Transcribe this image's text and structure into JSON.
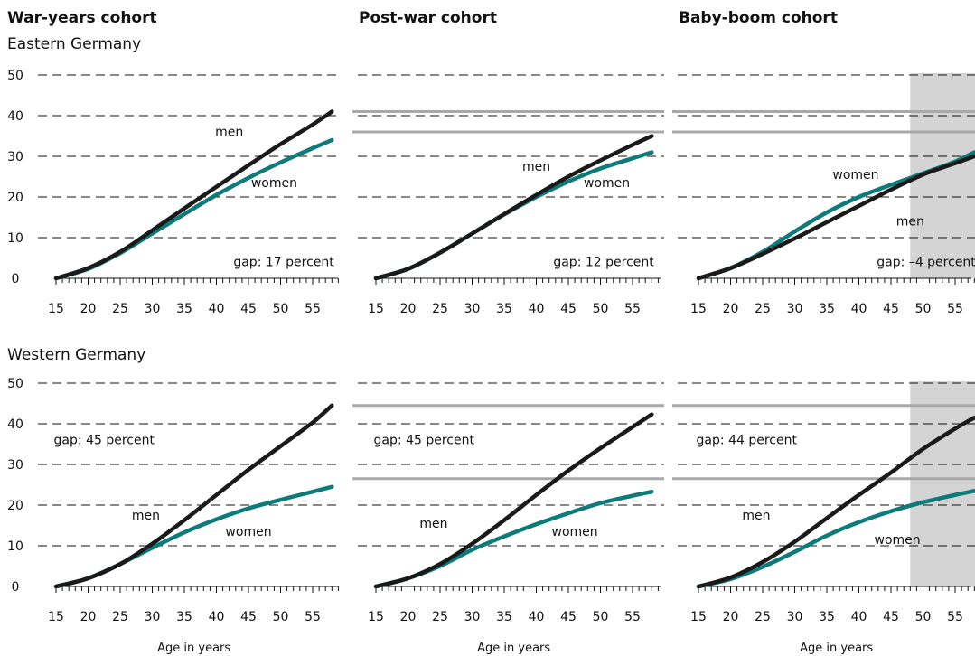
{
  "headings": {
    "cohorts": [
      "War-years cohort",
      "Post-war cohort",
      "Baby-boom cohort"
    ],
    "regions": [
      "Eastern Germany",
      "Western Germany"
    ],
    "xlabel": "Age in years"
  },
  "colors": {
    "men": "#1a1a1a",
    "women": "#0f7a7a",
    "reference": "#a8a8a8",
    "shade": "#d4d4d4"
  },
  "chart_data": [
    {
      "type": "line",
      "region": "Eastern Germany",
      "cohort": "War-years cohort",
      "x": [
        15,
        20,
        25,
        30,
        35,
        40,
        45,
        50,
        55,
        58
      ],
      "series": [
        {
          "name": "men",
          "values": [
            0,
            2.5,
            6.5,
            11.8,
            17.2,
            22.5,
            27.8,
            33,
            37.8,
            41
          ]
        },
        {
          "name": "women",
          "values": [
            0,
            2.3,
            6.2,
            11,
            15.8,
            20.5,
            24.7,
            28.5,
            32,
            34
          ]
        }
      ],
      "annotation": "gap: 17 percent",
      "xlim": [
        15,
        58
      ],
      "ylim": [
        0,
        50
      ],
      "xticks": [
        15,
        20,
        25,
        30,
        35,
        40,
        45,
        50,
        55
      ],
      "yticks": [
        0,
        10,
        20,
        30,
        40,
        50
      ],
      "reference_lines": [],
      "shaded_from": null
    },
    {
      "type": "line",
      "region": "Eastern Germany",
      "cohort": "Post-war cohort",
      "x": [
        15,
        20,
        25,
        30,
        35,
        40,
        45,
        50,
        55,
        58
      ],
      "series": [
        {
          "name": "men",
          "values": [
            0,
            2.3,
            6.3,
            11,
            15.8,
            20.5,
            25,
            29,
            32.8,
            35
          ]
        },
        {
          "name": "women",
          "values": [
            0,
            2.3,
            6.3,
            11,
            15.7,
            20,
            23.8,
            27,
            29.5,
            31
          ]
        }
      ],
      "annotation": "gap: 12 percent",
      "xlim": [
        15,
        58
      ],
      "ylim": [
        0,
        50
      ],
      "xticks": [
        15,
        20,
        25,
        30,
        35,
        40,
        45,
        50,
        55
      ],
      "yticks": [
        0,
        10,
        20,
        30,
        40,
        50
      ],
      "reference_lines": [
        41,
        36
      ],
      "shaded_from": null
    },
    {
      "type": "line",
      "region": "Eastern Germany",
      "cohort": "Baby-boom cohort",
      "x": [
        15,
        20,
        25,
        30,
        35,
        40,
        45,
        50,
        55,
        58
      ],
      "series": [
        {
          "name": "men",
          "values": [
            0,
            2.5,
            6,
            9.8,
            13.8,
            17.8,
            21.8,
            25.5,
            28.3,
            30
          ]
        },
        {
          "name": "women",
          "values": [
            0,
            2.5,
            6.5,
            11.5,
            16.2,
            20,
            23,
            25.8,
            28.7,
            31
          ]
        }
      ],
      "annotation": "gap: –4 percent",
      "xlim": [
        15,
        58
      ],
      "ylim": [
        0,
        50
      ],
      "xticks": [
        15,
        20,
        25,
        30,
        35,
        40,
        45,
        50,
        55
      ],
      "yticks": [
        0,
        10,
        20,
        30,
        40,
        50
      ],
      "reference_lines": [
        41,
        36
      ],
      "shaded_from": 48
    },
    {
      "type": "line",
      "region": "Western Germany",
      "cohort": "War-years cohort",
      "x": [
        15,
        20,
        25,
        30,
        35,
        40,
        45,
        50,
        55,
        58
      ],
      "series": [
        {
          "name": "men",
          "values": [
            0,
            2,
            5.5,
            10.5,
            16.3,
            22.5,
            28.7,
            34.5,
            40.3,
            44.5
          ]
        },
        {
          "name": "women",
          "values": [
            0,
            2,
            5.5,
            9.5,
            13.3,
            16.5,
            19.2,
            21.3,
            23.3,
            24.5
          ]
        }
      ],
      "annotation": "gap: 45 percent",
      "xlim": [
        15,
        58
      ],
      "ylim": [
        0,
        50
      ],
      "xticks": [
        15,
        20,
        25,
        30,
        35,
        40,
        45,
        50,
        55
      ],
      "yticks": [
        0,
        10,
        20,
        30,
        40,
        50
      ],
      "reference_lines": [],
      "shaded_from": null
    },
    {
      "type": "line",
      "region": "Western Germany",
      "cohort": "Post-war cohort",
      "x": [
        15,
        20,
        25,
        30,
        35,
        40,
        45,
        50,
        55,
        58
      ],
      "series": [
        {
          "name": "men",
          "values": [
            0,
            2,
            5.5,
            10.5,
            16.3,
            22.5,
            28.5,
            34,
            39.2,
            42.3
          ]
        },
        {
          "name": "women",
          "values": [
            0,
            2,
            5,
            9,
            12.3,
            15.3,
            18,
            20.5,
            22.3,
            23.3
          ]
        }
      ],
      "annotation": "gap: 45 percent",
      "xlim": [
        15,
        58
      ],
      "ylim": [
        0,
        50
      ],
      "xticks": [
        15,
        20,
        25,
        30,
        35,
        40,
        45,
        50,
        55
      ],
      "yticks": [
        0,
        10,
        20,
        30,
        40,
        50
      ],
      "reference_lines": [
        44.5,
        26.5
      ],
      "shaded_from": null
    },
    {
      "type": "line",
      "region": "Western Germany",
      "cohort": "Baby-boom cohort",
      "x": [
        15,
        20,
        25,
        30,
        35,
        40,
        45,
        50,
        55,
        58
      ],
      "series": [
        {
          "name": "men",
          "values": [
            0,
            2.2,
            6,
            11,
            16.8,
            22.5,
            28,
            33.8,
            38.8,
            41.5
          ]
        },
        {
          "name": "women",
          "values": [
            0,
            1.8,
            4.8,
            8.5,
            12.5,
            15.8,
            18.5,
            20.7,
            22.5,
            23.5
          ]
        }
      ],
      "annotation": "gap: 44 percent",
      "xlim": [
        15,
        58
      ],
      "ylim": [
        0,
        50
      ],
      "xticks": [
        15,
        20,
        25,
        30,
        35,
        40,
        45,
        50,
        55
      ],
      "yticks": [
        0,
        10,
        20,
        30,
        40,
        50
      ],
      "reference_lines": [
        44.5,
        26.5
      ],
      "shaded_from": 48
    }
  ],
  "series_labels": [
    {
      "panel": 0,
      "series": "men",
      "text": "men",
      "x": 42,
      "y": 35
    },
    {
      "panel": 0,
      "series": "women",
      "text": "women",
      "x": 49,
      "y": 22.5
    },
    {
      "panel": 1,
      "series": "men",
      "text": "men",
      "x": 40,
      "y": 26.5
    },
    {
      "panel": 1,
      "series": "women",
      "text": "women",
      "x": 51,
      "y": 22.5
    },
    {
      "panel": 2,
      "series": "women",
      "text": "women",
      "x": 39.5,
      "y": 24.5
    },
    {
      "panel": 2,
      "series": "men",
      "text": "men",
      "x": 48,
      "y": 13
    },
    {
      "panel": 3,
      "series": "men",
      "text": "men",
      "x": 29,
      "y": 16.5
    },
    {
      "panel": 3,
      "series": "women",
      "text": "women",
      "x": 45,
      "y": 12.5
    },
    {
      "panel": 4,
      "series": "men",
      "text": "men",
      "x": 24,
      "y": 14.5
    },
    {
      "panel": 4,
      "series": "women",
      "text": "women",
      "x": 46,
      "y": 12.5
    },
    {
      "panel": 5,
      "series": "men",
      "text": "men",
      "x": 24,
      "y": 16.5
    },
    {
      "panel": 5,
      "series": "women",
      "text": "women",
      "x": 46,
      "y": 10.5
    }
  ]
}
